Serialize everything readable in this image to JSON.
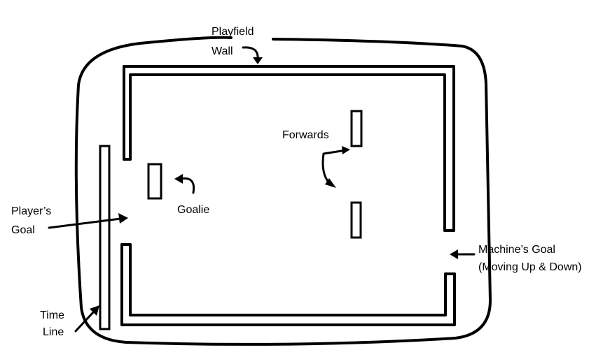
{
  "labels": {
    "playfield_wall_line1": "Playfield",
    "playfield_wall_line2": "Wall",
    "forwards": "Forwards",
    "goalie": "Goalie",
    "players_goal_line1": "Player’s",
    "players_goal_line2": "Goal",
    "machines_goal_line1": "Machine’s Goal",
    "machines_goal_line2": "(Moving Up & Down)",
    "time_line_line1": "Time",
    "time_line_line2": "Line"
  },
  "colors": {
    "ink": "#000000",
    "background": "#ffffff"
  }
}
